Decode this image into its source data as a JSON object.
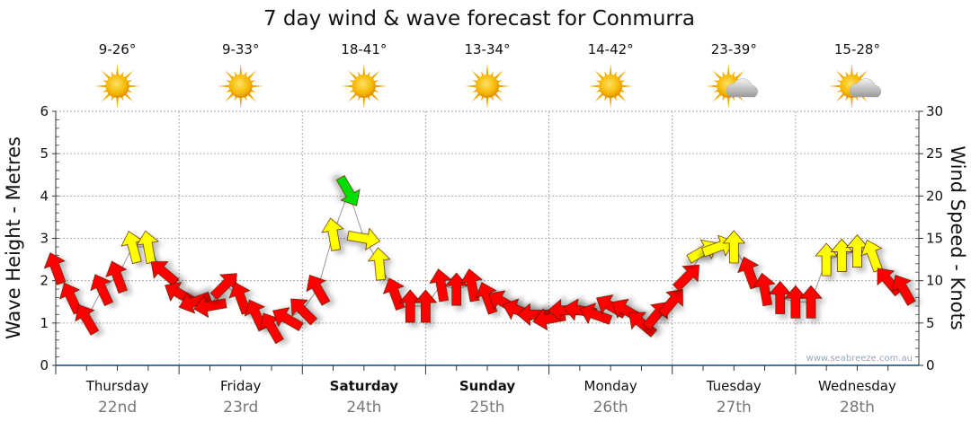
{
  "chart_data": {
    "type": "scatter",
    "title": "7 day wind & wave forecast for Conmurra",
    "ylabel_left": "Wave Height - Metres",
    "ylabel_right": "Wind Speed - Knots",
    "ylim_left": [
      0,
      6
    ],
    "ylim_right": [
      0,
      30
    ],
    "yticks_left": [
      "0",
      "1",
      "2",
      "3",
      "4",
      "5",
      "6"
    ],
    "yticks_right": [
      "0",
      "5",
      "10",
      "15",
      "20",
      "25",
      "30"
    ],
    "grid": true,
    "watermark": "www.seabreeze.com.au",
    "days": [
      {
        "day": "Thursday",
        "date": "22nd",
        "temp": "9-26°",
        "icon": "sunny",
        "bold": false
      },
      {
        "day": "Friday",
        "date": "23rd",
        "temp": "9-33°",
        "icon": "sunny",
        "bold": false
      },
      {
        "day": "Saturday",
        "date": "24th",
        "temp": "18-41°",
        "icon": "sunny",
        "bold": true
      },
      {
        "day": "Sunday",
        "date": "25th",
        "temp": "13-34°",
        "icon": "sunny",
        "bold": true
      },
      {
        "day": "Monday",
        "date": "26th",
        "temp": "14-42°",
        "icon": "sunny",
        "bold": false
      },
      {
        "day": "Tuesday",
        "date": "27th",
        "temp": "23-39°",
        "icon": "partly-cloudy",
        "bold": false
      },
      {
        "day": "Wednesday",
        "date": "28th",
        "temp": "15-28°",
        "icon": "partly-cloudy",
        "bold": false
      }
    ],
    "wind_interval_hours": 3,
    "wind_speed_knots": [
      11.5,
      8,
      5.5,
      9,
      10.5,
      14,
      14,
      11,
      8.5,
      7.5,
      7,
      9.5,
      8,
      6,
      4.5,
      5.5,
      6.5,
      9,
      15.5,
      20.5,
      15,
      12,
      8.5,
      7,
      7,
      9.5,
      9,
      9.5,
      8,
      7.5,
      6.5,
      6,
      5.5,
      6.5,
      6.5,
      6,
      7,
      6.5,
      5,
      6,
      7.5,
      10.5,
      13.5,
      14,
      14,
      11,
      9,
      8,
      7.5,
      7.5,
      12.5,
      13,
      13.5,
      13,
      10,
      9
    ],
    "wind_arrow_heading_deg": [
      -20,
      -25,
      -30,
      -25,
      -20,
      -15,
      -10,
      -50,
      -60,
      -110,
      -100,
      45,
      -20,
      -25,
      -30,
      -60,
      -45,
      -30,
      -10,
      150,
      100,
      -5,
      -20,
      0,
      0,
      -10,
      0,
      -10,
      -20,
      -60,
      -70,
      -90,
      -100,
      -90,
      -80,
      -70,
      -60,
      -60,
      -50,
      40,
      40,
      45,
      60,
      70,
      0,
      -20,
      -10,
      0,
      0,
      0,
      0,
      0,
      0,
      -20,
      -40,
      -30
    ],
    "color_thresholds_knots": {
      "red_below": 12,
      "yellow_below": 20
    },
    "colors": {
      "calm": "#ff0000",
      "moderate": "#ffff00",
      "strong": "#00dd00",
      "axis": "#0a4a7a",
      "date": "#777777"
    }
  }
}
